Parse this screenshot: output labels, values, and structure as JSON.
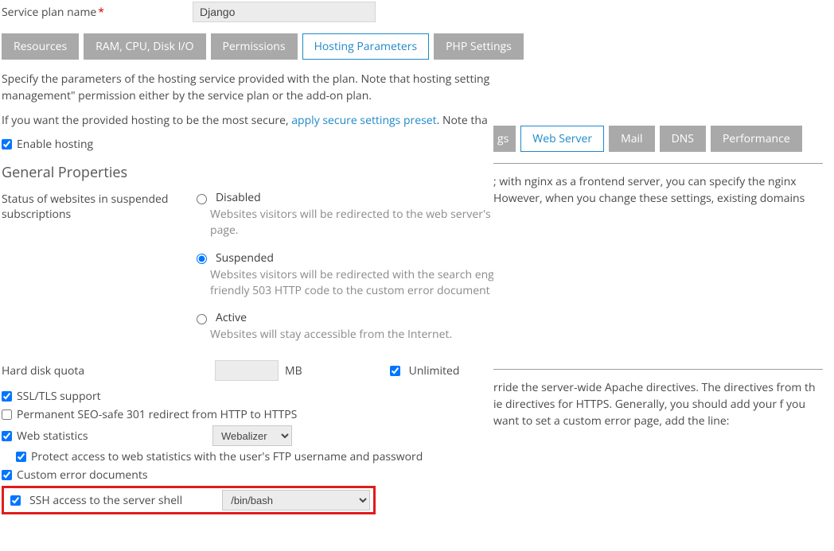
{
  "servicePlan": {
    "label": "Service plan name",
    "value": "Django"
  },
  "tabs": [
    {
      "label": "Resources",
      "active": false
    },
    {
      "label": "RAM, CPU, Disk I/O",
      "active": false
    },
    {
      "label": "Permissions",
      "active": false
    },
    {
      "label": "Hosting Parameters",
      "active": true
    },
    {
      "label": "PHP Settings",
      "active": false
    }
  ],
  "descriptions": {
    "line1": "Specify the parameters of the hosting service provided with the plan. Note that hosting setting management\" permission either by the service plan or the add-on plan.",
    "line2a": "If you want the provided hosting to be the most secure, ",
    "line2link": "apply secure settings preset",
    "line2b": ". Note tha"
  },
  "enableHosting": {
    "label": "Enable hosting",
    "checked": true
  },
  "generalHeading": "General Properties",
  "statusBlock": {
    "label": "Status of websites in suspended subscriptions",
    "options": [
      {
        "value": "disabled",
        "label": "Disabled",
        "sub": "Websites visitors will be redirected to the web server's page."
      },
      {
        "value": "suspended",
        "label": "Suspended",
        "sub": "Websites visitors will be redirected with the search eng friendly 503 HTTP code to the custom error document p"
      },
      {
        "value": "active",
        "label": "Active",
        "sub": "Websites will stay accessible from the Internet."
      }
    ],
    "selected": "suspended"
  },
  "hdq": {
    "label": "Hard disk quota",
    "unit": "MB",
    "unlimitedLabel": "Unlimited",
    "unlimitedChecked": true
  },
  "checks": {
    "ssl": {
      "label": "SSL/TLS support",
      "checked": true
    },
    "seo": {
      "label": "Permanent SEO-safe 301 redirect from HTTP to HTTPS",
      "checked": false
    },
    "stats": {
      "label": "Web statistics",
      "checked": true,
      "select": "Webalizer"
    },
    "protect": {
      "label": "Protect access to web statistics with the user's FTP username and password",
      "checked": true
    },
    "cerr": {
      "label": "Custom error documents",
      "checked": true
    },
    "ssh": {
      "label": "SSH access to the server shell",
      "checked": true,
      "select": "/bin/bash"
    }
  },
  "rightPanel": {
    "tabs": [
      {
        "label": "gs",
        "frag": true
      },
      {
        "label": "Web Server",
        "active": true
      },
      {
        "label": "Mail"
      },
      {
        "label": "DNS"
      },
      {
        "label": "Performance"
      }
    ],
    "para1": "; with nginx as a frontend server, you can specify the nginx However, when you change these settings, existing domains",
    "para2": "rride the server-wide Apache directives. The directives from th ie directives for HTTPS. Generally, you should add your f you want to set a custom error page, add the line:"
  }
}
